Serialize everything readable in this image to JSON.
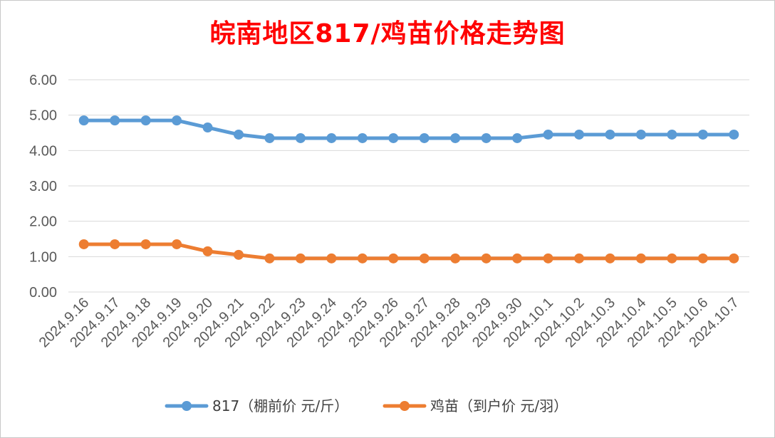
{
  "chart_data": {
    "type": "line",
    "title": "皖南地区817/鸡苗价格走势图",
    "xlabel": "",
    "ylabel": "",
    "ylim": [
      0,
      6
    ],
    "yticks": [
      "0.00",
      "1.00",
      "2.00",
      "3.00",
      "4.00",
      "5.00",
      "6.00"
    ],
    "grid": true,
    "legend_position": "bottom",
    "categories": [
      "2024.9.16",
      "2024.9.17",
      "2024.9.18",
      "2024.9.19",
      "2024.9.20",
      "2024.9.21",
      "2024.9.22",
      "2024.9.23",
      "2024.9.24",
      "2024.9.25",
      "2024.9.26",
      "2024.9.27",
      "2024.9.28",
      "2024.9.29",
      "2024.9.30",
      "2024.10.1",
      "2024.10.2",
      "2024.10.3",
      "2024.10.4",
      "2024.10.5",
      "2024.10.6",
      "2024.10.7"
    ],
    "series": [
      {
        "name": "817（棚前价 元/斤）",
        "color": "#5b9bd5",
        "values": [
          4.85,
          4.85,
          4.85,
          4.85,
          4.65,
          4.45,
          4.35,
          4.35,
          4.35,
          4.35,
          4.35,
          4.35,
          4.35,
          4.35,
          4.35,
          4.45,
          4.45,
          4.45,
          4.45,
          4.45,
          4.45,
          4.45
        ]
      },
      {
        "name": "鸡苗（到户价 元/羽）",
        "color": "#ed7d31",
        "values": [
          1.35,
          1.35,
          1.35,
          1.35,
          1.15,
          1.05,
          0.95,
          0.95,
          0.95,
          0.95,
          0.95,
          0.95,
          0.95,
          0.95,
          0.95,
          0.95,
          0.95,
          0.95,
          0.95,
          0.95,
          0.95,
          0.95
        ]
      }
    ]
  }
}
